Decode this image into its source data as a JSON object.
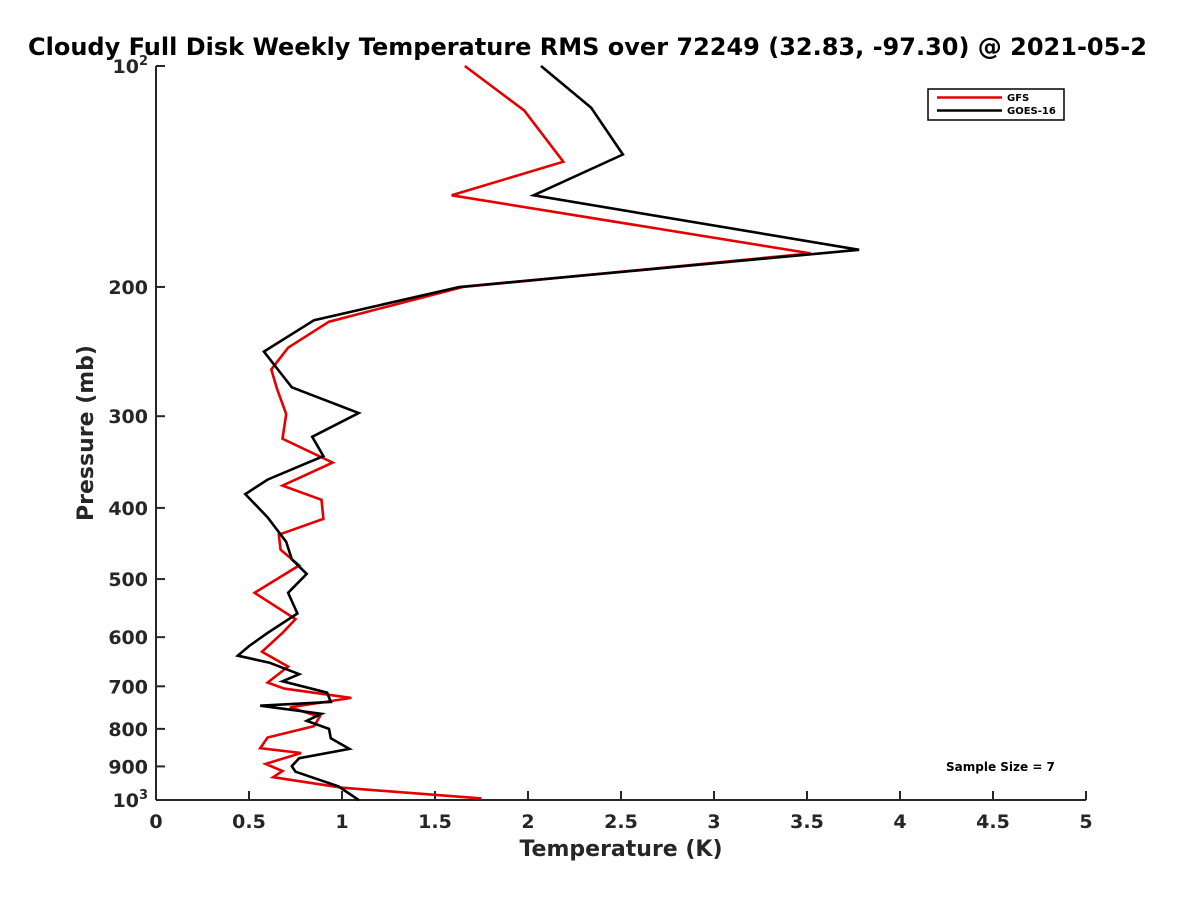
{
  "chart_data": {
    "type": "line",
    "title": "Cloudy Full Disk Weekly Temperature RMS over 72249 (32.83, -97.30) @ 2021-05-2",
    "xlabel": "Temperature (K)",
    "ylabel": "Pressure (mb)",
    "xlim": [
      0,
      5
    ],
    "ylim": [
      100,
      1000
    ],
    "y_scale": "log",
    "y_reversed": true,
    "grid": false,
    "x_ticks": [
      "0",
      "0.5",
      "1",
      "1.5",
      "2",
      "2.5",
      "3",
      "3.5",
      "4",
      "4.5",
      "5"
    ],
    "y_ticks": [
      {
        "value": 100,
        "base": "10",
        "exp": "2"
      },
      {
        "value": 200,
        "label": "200"
      },
      {
        "value": 300,
        "label": "300"
      },
      {
        "value": 400,
        "label": "400"
      },
      {
        "value": 500,
        "label": "500"
      },
      {
        "value": 600,
        "label": "600"
      },
      {
        "value": 700,
        "label": "700"
      },
      {
        "value": 800,
        "label": "800"
      },
      {
        "value": 900,
        "label": "900"
      },
      {
        "value": 1000,
        "base": "10",
        "exp": "3"
      }
    ],
    "legend_position": "top-right",
    "annotation": "Sample Size = 7",
    "series": [
      {
        "name": "GFS",
        "color": "#e50000",
        "points": [
          [
            1.66,
            100
          ],
          [
            1.98,
            115
          ],
          [
            2.19,
            135
          ],
          [
            1.59,
            150
          ],
          [
            3.52,
            180
          ],
          [
            1.65,
            200
          ],
          [
            0.93,
            223
          ],
          [
            0.71,
            242
          ],
          [
            0.62,
            259
          ],
          [
            0.65,
            275
          ],
          [
            0.7,
            298
          ],
          [
            0.68,
            322
          ],
          [
            0.95,
            347
          ],
          [
            0.68,
            373
          ],
          [
            0.89,
            390
          ],
          [
            0.9,
            414
          ],
          [
            0.66,
            435
          ],
          [
            0.67,
            456
          ],
          [
            0.77,
            479
          ],
          [
            0.53,
            522
          ],
          [
            0.75,
            567
          ],
          [
            0.68,
            592
          ],
          [
            0.57,
            628
          ],
          [
            0.71,
            658
          ],
          [
            0.6,
            692
          ],
          [
            0.69,
            705
          ],
          [
            1.05,
            726
          ],
          [
            0.72,
            748
          ],
          [
            0.88,
            770
          ],
          [
            0.85,
            793
          ],
          [
            0.6,
            822
          ],
          [
            0.56,
            850
          ],
          [
            0.78,
            863
          ],
          [
            0.59,
            893
          ],
          [
            0.68,
            913
          ],
          [
            0.63,
            931
          ],
          [
            1.0,
            962
          ],
          [
            1.75,
            995
          ]
        ]
      },
      {
        "name": "GOES-16",
        "color": "#000000",
        "points": [
          [
            2.07,
            100
          ],
          [
            2.34,
            114
          ],
          [
            2.51,
            132
          ],
          [
            2.03,
            150
          ],
          [
            3.78,
            178
          ],
          [
            1.63,
            200
          ],
          [
            0.85,
            222
          ],
          [
            0.58,
            245
          ],
          [
            0.67,
            262
          ],
          [
            0.73,
            274
          ],
          [
            1.09,
            297
          ],
          [
            0.84,
            320
          ],
          [
            0.9,
            340
          ],
          [
            0.6,
            366
          ],
          [
            0.48,
            383
          ],
          [
            0.6,
            412
          ],
          [
            0.7,
            445
          ],
          [
            0.73,
            470
          ],
          [
            0.81,
            492
          ],
          [
            0.71,
            522
          ],
          [
            0.76,
            557
          ],
          [
            0.6,
            592
          ],
          [
            0.5,
            617
          ],
          [
            0.44,
            636
          ],
          [
            0.61,
            650
          ],
          [
            0.77,
            674
          ],
          [
            0.68,
            689
          ],
          [
            0.92,
            714
          ],
          [
            0.94,
            735
          ],
          [
            0.56,
            744
          ],
          [
            0.89,
            763
          ],
          [
            0.81,
            780
          ],
          [
            0.93,
            800
          ],
          [
            0.94,
            824
          ],
          [
            1.04,
            852
          ],
          [
            0.77,
            877
          ],
          [
            0.73,
            899
          ],
          [
            0.75,
            915
          ],
          [
            0.98,
            958
          ],
          [
            1.09,
            1000
          ]
        ]
      }
    ]
  }
}
